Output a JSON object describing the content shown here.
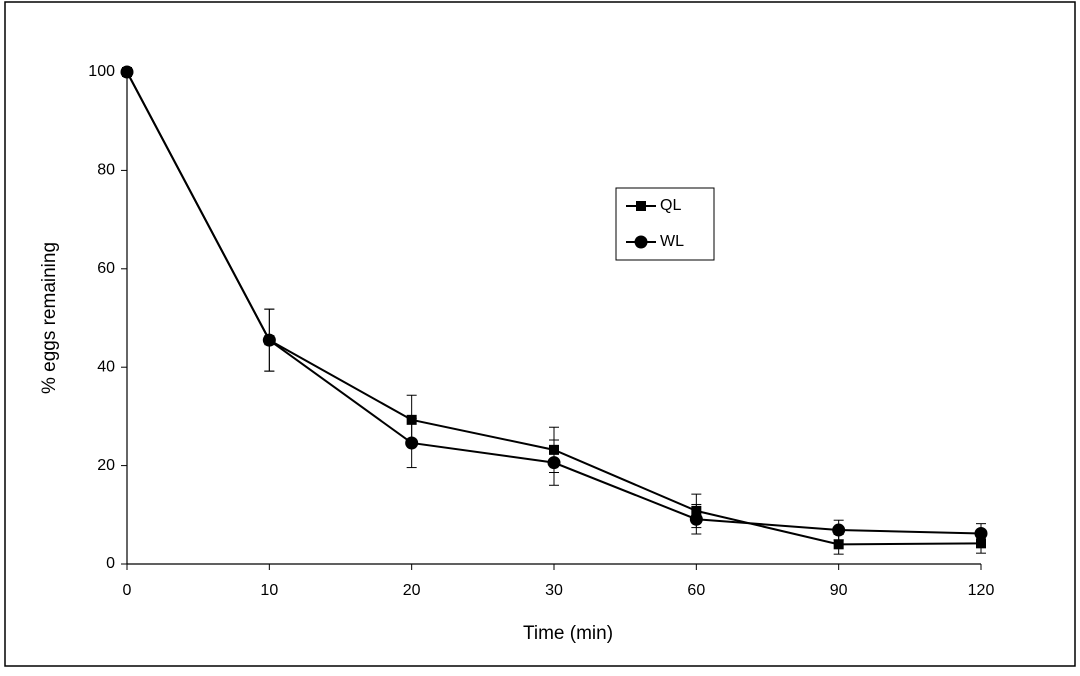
{
  "chart_data": {
    "type": "line",
    "x_label": "Time (min)",
    "y_label": "% eggs remaining",
    "categories": [
      "0",
      "10",
      "20",
      "30",
      "60",
      "90",
      "120"
    ],
    "series": [
      {
        "name": "QL",
        "color": "#000000",
        "marker": "square",
        "values": [
          100,
          45.5,
          29.3,
          23.2,
          10.8,
          4,
          4.2
        ],
        "errors": [
          0,
          6.3,
          5,
          4.6,
          3.4,
          2,
          2
        ]
      },
      {
        "name": "WL",
        "color": "#000000",
        "marker": "circle",
        "values": [
          100,
          45.5,
          24.6,
          20.6,
          9.1,
          6.9,
          6.2
        ],
        "errors": [
          0,
          6.3,
          5,
          4.6,
          3,
          2,
          2
        ]
      }
    ],
    "ylim": [
      0,
      100
    ],
    "yticks": [
      0,
      20,
      40,
      60,
      80,
      100
    ],
    "grid": false
  }
}
